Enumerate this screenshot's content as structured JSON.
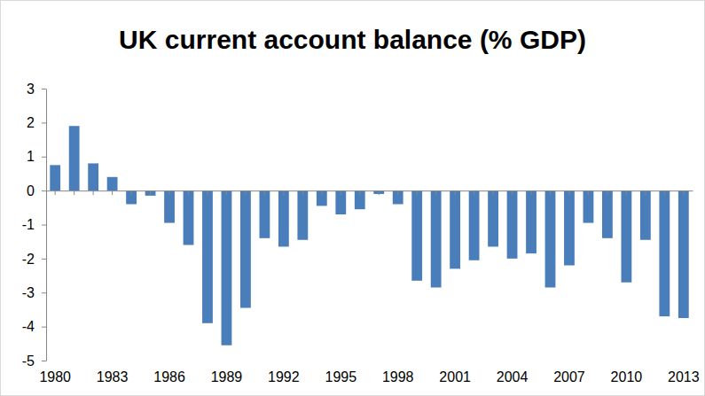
{
  "chart_data": {
    "type": "bar",
    "title": "UK current account balance (% GDP)",
    "categories": [
      "1980",
      null,
      null,
      "1983",
      null,
      null,
      "1986",
      null,
      null,
      "1989",
      null,
      null,
      "1992",
      null,
      null,
      "1995",
      null,
      null,
      "1998",
      null,
      null,
      "2001",
      null,
      null,
      "2004",
      null,
      null,
      "2007",
      null,
      null,
      "2010",
      null,
      null,
      "2013"
    ],
    "values": [
      0.75,
      1.9,
      0.8,
      0.4,
      -0.4,
      -0.15,
      -0.95,
      -1.6,
      -3.9,
      -4.55,
      -3.45,
      -1.4,
      -1.65,
      -1.45,
      -0.45,
      -0.7,
      -0.55,
      -0.1,
      -0.4,
      -2.65,
      -2.85,
      -2.3,
      -2.05,
      -1.65,
      -2.0,
      -1.85,
      -2.85,
      -2.2,
      -0.95,
      -1.4,
      -2.7,
      -1.45,
      -3.7,
      -3.75
    ],
    "color": "#4a7ebb",
    "ylim": [
      -5,
      3
    ],
    "yticks": [
      -5,
      -4,
      -3,
      -2,
      -1,
      0,
      1,
      2,
      3
    ],
    "grid": false
  }
}
